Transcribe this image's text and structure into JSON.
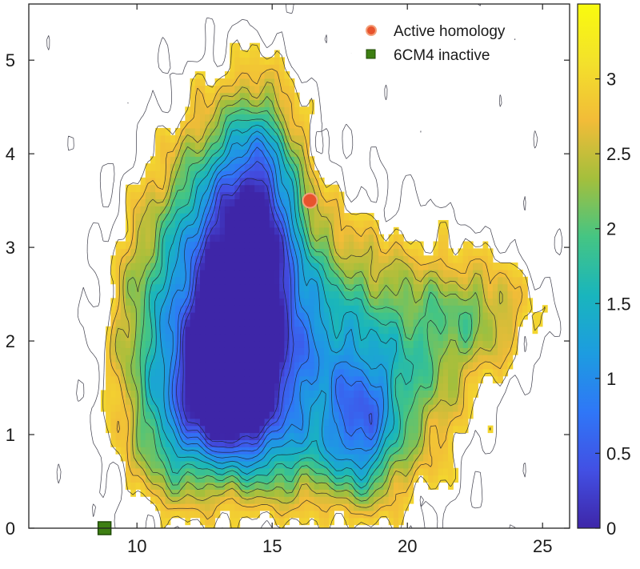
{
  "chart_data": {
    "type": "heatmap",
    "subtype": "filled-contour free-energy landscape with marker overlays",
    "title": "",
    "xlabel": "",
    "ylabel": "",
    "xlim": [
      6,
      26
    ],
    "ylim": [
      0,
      5.6
    ],
    "x_ticks": [
      10,
      15,
      20,
      25
    ],
    "y_ticks": [
      0,
      1,
      2,
      3,
      4,
      5
    ],
    "colorbar": {
      "range": [
        0,
        3.5
      ],
      "ticks": [
        0,
        0.5,
        1,
        1.5,
        2,
        2.5,
        3
      ],
      "colormap": "parula",
      "colors": [
        "#3e26a8",
        "#4250e4",
        "#2f77f7",
        "#1d9ce0",
        "#19b5bd",
        "#45c583",
        "#a4bf3c",
        "#f2bc38",
        "#f3e12b",
        "#f9fb0e"
      ]
    },
    "contour_levels": [
      0.25,
      0.5,
      0.75,
      1.0,
      1.25,
      1.5,
      1.75,
      2.0,
      2.25,
      2.5,
      2.75,
      3.0,
      3.25
    ],
    "basins": [
      {
        "x": 13.4,
        "y": 1.6,
        "sx": 1.15,
        "sy": 0.5,
        "depth": 3.4
      },
      {
        "x": 13.9,
        "y": 2.6,
        "sx": 1.5,
        "sy": 1.05,
        "depth": 2.3
      },
      {
        "x": 14.6,
        "y": 3.7,
        "sx": 1.0,
        "sy": 0.75,
        "depth": 1.5
      },
      {
        "x": 12.7,
        "y": 2.9,
        "sx": 1.6,
        "sy": 1.0,
        "depth": 1.3
      },
      {
        "x": 16.6,
        "y": 2.0,
        "sx": 1.9,
        "sy": 0.85,
        "depth": 1.8
      },
      {
        "x": 18.3,
        "y": 1.05,
        "sx": 0.9,
        "sy": 0.55,
        "depth": 1.5
      },
      {
        "x": 20.2,
        "y": 1.7,
        "sx": 1.6,
        "sy": 0.9,
        "depth": 1.2
      },
      {
        "x": 22.8,
        "y": 2.3,
        "sx": 1.5,
        "sy": 0.45,
        "depth": 1.0
      },
      {
        "x": 10.6,
        "y": 1.9,
        "sx": 1.3,
        "sy": 1.0,
        "depth": 1.2
      },
      {
        "x": 15.2,
        "y": 0.8,
        "sx": 2.2,
        "sy": 0.45,
        "depth": 1.0
      },
      {
        "x": 11.5,
        "y": 0.9,
        "sx": 1.0,
        "sy": 0.5,
        "depth": 0.8
      }
    ],
    "series": [
      {
        "name": "Active homology",
        "marker": "circle",
        "color": "#e8532d",
        "x": 16.4,
        "y": 3.5
      },
      {
        "name": "6CM4 inactive",
        "marker": "square",
        "color": "#3d7f12",
        "x": 8.8,
        "y": 0.0
      }
    ],
    "legend_position": "top-right",
    "grid": false
  }
}
